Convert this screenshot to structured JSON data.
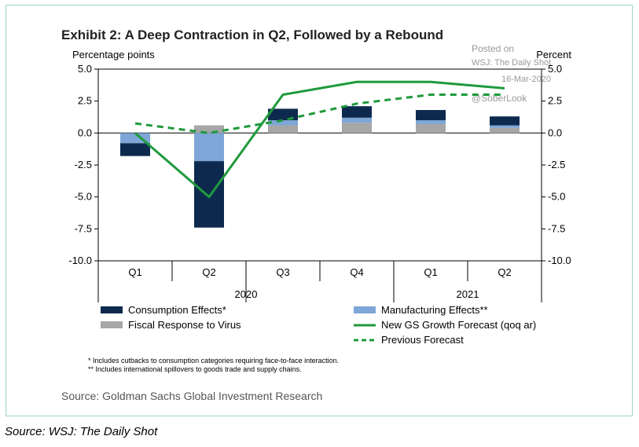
{
  "page": {
    "source_caption": "Source: WSJ: The Daily Shot"
  },
  "chart_data": {
    "type": "bar",
    "title": "Exhibit 2: A Deep Contraction in Q2, Followed by a Rebound",
    "ylabel_left": "Percentage points",
    "ylabel_right": "Percent",
    "ylim": [
      -10,
      5
    ],
    "yticks": [
      "5.0",
      "2.5",
      "0.0",
      "-2.5",
      "-5.0",
      "-7.5",
      "-10.0"
    ],
    "ytick_values": [
      5,
      2.5,
      0,
      -2.5,
      -5,
      -7.5,
      -10
    ],
    "grid": false,
    "categories": [
      "Q1",
      "Q2",
      "Q3",
      "Q4",
      "Q1",
      "Q2"
    ],
    "year_groups": [
      {
        "label": "2020",
        "start": 0,
        "end": 3
      },
      {
        "label": "2021",
        "start": 4,
        "end": 5
      }
    ],
    "stacked_series": [
      {
        "name": "Fiscal Response to Virus",
        "color": "#a6a6a6",
        "values": [
          0,
          0.6,
          0.6,
          0.8,
          0.7,
          0.4
        ]
      },
      {
        "name": "Manufacturing Effects**",
        "color": "#7ea6d6",
        "values": [
          -0.8,
          -2.2,
          0.4,
          0.4,
          0.3,
          0.2
        ]
      },
      {
        "name": "Consumption Effects*",
        "color": "#0d2a4e",
        "values": [
          -1.0,
          -5.2,
          0.9,
          0.9,
          0.8,
          0.7
        ]
      }
    ],
    "line_series": [
      {
        "name": "New GS Growth Forecast (qoq ar)",
        "color": "#1e9a3c",
        "dashed": false,
        "values": [
          0,
          -5,
          3,
          4,
          4,
          3.5
        ]
      },
      {
        "name": "Previous Forecast",
        "color": "#1e9a3c",
        "dashed": true,
        "values": [
          0.75,
          0,
          1,
          2.3,
          3,
          3
        ]
      }
    ],
    "legend": [
      {
        "label": "Consumption Effects*",
        "kind": "bar",
        "color": "#0d2a4e"
      },
      {
        "label": "Manufacturing Effects**",
        "kind": "bar",
        "color": "#7ea6d6"
      },
      {
        "label": "Fiscal Response to Virus",
        "kind": "bar",
        "color": "#a6a6a6"
      },
      {
        "label": "New GS Growth Forecast (qoq ar)",
        "kind": "line",
        "color": "#1e9a3c"
      },
      {
        "label": "Previous Forecast",
        "kind": "dashed",
        "color": "#1e9a3c"
      }
    ],
    "legend_placement": "bottom",
    "footnotes": [
      "* Includes cutbacks to consumption categories requiring face-to-face interaction.",
      "** Includes international spillovers to goods trade and supply chains."
    ],
    "source": "Source: Goldman Sachs Global Investment Research",
    "watermark": [
      "Posted on",
      "WSJ: The Daily Shot",
      "16-Mar-2020",
      "@SoberLook"
    ]
  }
}
